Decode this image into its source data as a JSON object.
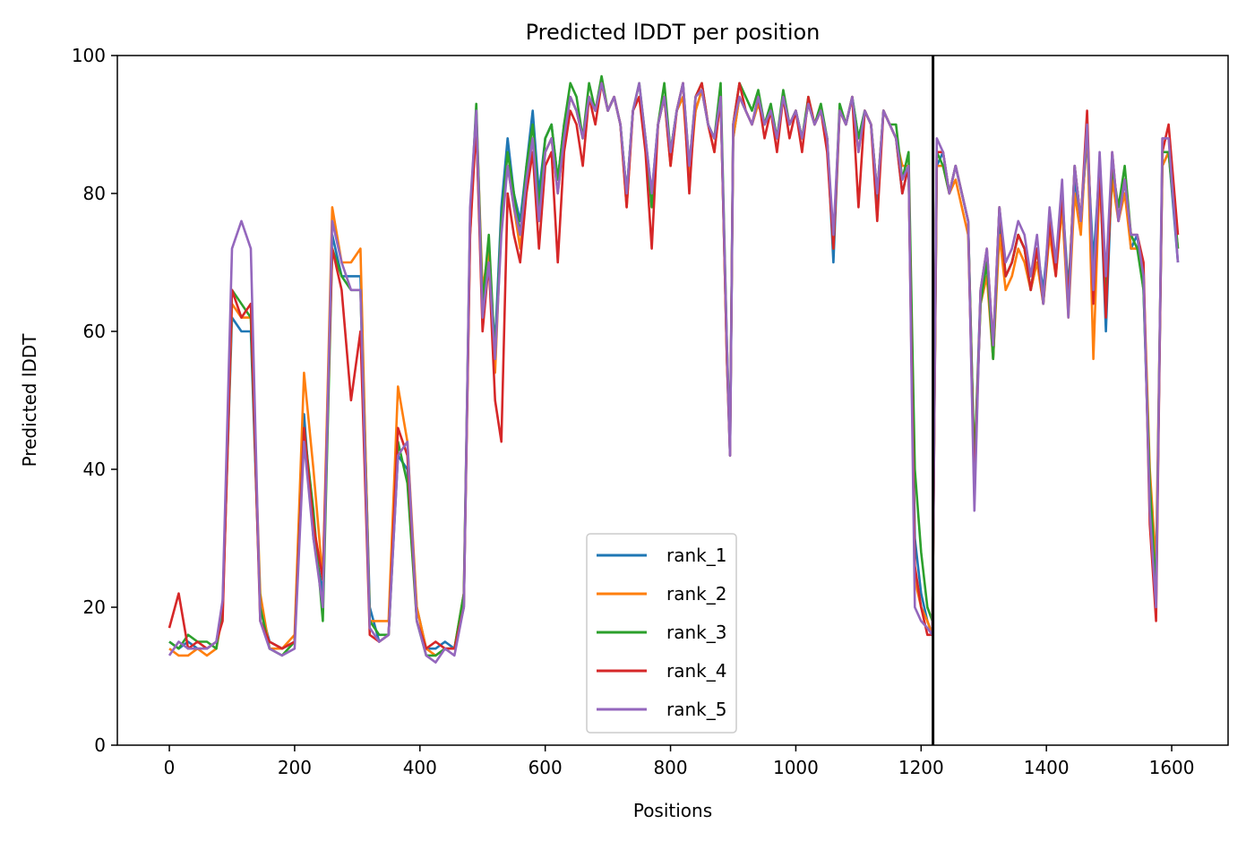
{
  "chart_data": {
    "type": "line",
    "title": "Predicted lDDT per position",
    "xlabel": "Positions",
    "ylabel": "Predicted lDDT",
    "xlim": [
      -83,
      1690
    ],
    "ylim": [
      0,
      100
    ],
    "xticks": [
      0,
      200,
      400,
      600,
      800,
      1000,
      1200,
      1400,
      1600
    ],
    "yticks": [
      0,
      20,
      40,
      60,
      80,
      100
    ],
    "grid": false,
    "legend_position": "lower center",
    "vertical_marker_x": 1219,
    "vertical_marker_color": "#000000",
    "x": [
      0,
      15,
      30,
      45,
      60,
      75,
      85,
      100,
      115,
      130,
      145,
      160,
      180,
      200,
      215,
      230,
      245,
      260,
      275,
      290,
      305,
      320,
      335,
      350,
      365,
      380,
      395,
      410,
      425,
      440,
      455,
      470,
      480,
      490,
      500,
      510,
      520,
      530,
      540,
      550,
      560,
      570,
      580,
      590,
      600,
      610,
      620,
      630,
      640,
      650,
      660,
      670,
      680,
      690,
      700,
      710,
      720,
      730,
      740,
      750,
      760,
      770,
      780,
      790,
      800,
      810,
      820,
      830,
      840,
      850,
      860,
      870,
      880,
      890,
      895,
      900,
      910,
      920,
      930,
      940,
      950,
      960,
      970,
      980,
      990,
      1000,
      1010,
      1020,
      1030,
      1040,
      1050,
      1060,
      1070,
      1080,
      1090,
      1100,
      1110,
      1120,
      1130,
      1140,
      1150,
      1160,
      1170,
      1180,
      1190,
      1200,
      1210,
      1218,
      1225,
      1235,
      1245,
      1255,
      1265,
      1275,
      1285,
      1295,
      1305,
      1315,
      1325,
      1335,
      1345,
      1355,
      1365,
      1375,
      1385,
      1395,
      1405,
      1415,
      1425,
      1435,
      1445,
      1455,
      1465,
      1475,
      1485,
      1495,
      1505,
      1515,
      1525,
      1535,
      1545,
      1555,
      1565,
      1575,
      1585,
      1595,
      1610
    ],
    "series": [
      {
        "name": "rank_1",
        "color": "#1f77b4",
        "values": [
          15,
          14,
          15,
          14,
          14,
          15,
          20,
          62,
          60,
          60,
          20,
          15,
          14,
          15,
          48,
          30,
          22,
          74,
          68,
          68,
          68,
          20,
          15,
          16,
          42,
          40,
          20,
          14,
          14,
          15,
          14,
          20,
          76,
          90,
          62,
          70,
          58,
          78,
          88,
          80,
          76,
          84,
          92,
          80,
          88,
          90,
          82,
          90,
          94,
          92,
          88,
          94,
          92,
          96,
          92,
          94,
          90,
          80,
          92,
          94,
          88,
          80,
          90,
          94,
          86,
          92,
          94,
          84,
          92,
          95,
          90,
          88,
          94,
          56,
          42,
          88,
          94,
          92,
          90,
          93,
          90,
          92,
          88,
          94,
          90,
          92,
          88,
          93,
          90,
          92,
          88,
          70,
          92,
          90,
          94,
          88,
          92,
          90,
          78,
          92,
          90,
          88,
          80,
          84,
          30,
          22,
          18,
          16,
          84,
          86,
          80,
          84,
          80,
          76,
          40,
          66,
          70,
          56,
          76,
          68,
          70,
          74,
          72,
          68,
          72,
          66,
          76,
          70,
          80,
          66,
          82,
          76,
          88,
          70,
          84,
          60,
          84,
          76,
          82,
          72,
          74,
          66,
          36,
          22,
          84,
          86,
          70
        ]
      },
      {
        "name": "rank_2",
        "color": "#ff7f0e",
        "values": [
          14,
          13,
          13,
          14,
          13,
          14,
          19,
          64,
          62,
          62,
          22,
          14,
          14,
          16,
          54,
          40,
          24,
          78,
          70,
          70,
          72,
          18,
          18,
          18,
          52,
          44,
          20,
          14,
          13,
          14,
          14,
          22,
          74,
          92,
          66,
          72,
          54,
          76,
          84,
          78,
          72,
          82,
          88,
          76,
          86,
          88,
          80,
          88,
          94,
          92,
          88,
          94,
          92,
          96,
          92,
          94,
          90,
          78,
          92,
          94,
          88,
          78,
          90,
          94,
          84,
          92,
          94,
          82,
          92,
          95,
          90,
          86,
          94,
          56,
          44,
          88,
          94,
          92,
          90,
          93,
          90,
          92,
          88,
          94,
          90,
          92,
          88,
          93,
          90,
          92,
          88,
          72,
          92,
          90,
          94,
          86,
          92,
          90,
          80,
          92,
          90,
          88,
          84,
          84,
          24,
          20,
          18,
          16,
          84,
          84,
          80,
          82,
          78,
          74,
          40,
          64,
          68,
          56,
          74,
          66,
          68,
          72,
          70,
          66,
          70,
          64,
          74,
          68,
          78,
          62,
          80,
          74,
          90,
          56,
          82,
          66,
          82,
          76,
          80,
          72,
          72,
          68,
          40,
          26,
          84,
          86,
          72
        ]
      },
      {
        "name": "rank_3",
        "color": "#2ca02c",
        "values": [
          15,
          14,
          16,
          15,
          15,
          14,
          20,
          66,
          64,
          62,
          20,
          14,
          13,
          15,
          46,
          34,
          18,
          72,
          68,
          66,
          66,
          18,
          16,
          16,
          44,
          38,
          18,
          13,
          13,
          14,
          14,
          22,
          76,
          93,
          64,
          74,
          56,
          76,
          86,
          80,
          74,
          84,
          90,
          78,
          88,
          90,
          82,
          90,
          96,
          94,
          88,
          96,
          92,
          97,
          92,
          94,
          90,
          80,
          92,
          96,
          88,
          78,
          90,
          96,
          86,
          92,
          96,
          84,
          94,
          96,
          90,
          88,
          96,
          58,
          44,
          90,
          96,
          94,
          92,
          95,
          90,
          93,
          88,
          95,
          90,
          92,
          88,
          94,
          90,
          93,
          88,
          72,
          93,
          90,
          94,
          88,
          92,
          90,
          80,
          92,
          90,
          90,
          82,
          86,
          40,
          28,
          20,
          18,
          86,
          84,
          80,
          84,
          80,
          76,
          40,
          64,
          70,
          56,
          78,
          68,
          70,
          74,
          72,
          66,
          72,
          64,
          76,
          70,
          80,
          64,
          84,
          76,
          90,
          66,
          84,
          64,
          84,
          78,
          84,
          74,
          72,
          66,
          38,
          22,
          86,
          86,
          72
        ]
      },
      {
        "name": "rank_4",
        "color": "#d62728",
        "values": [
          17,
          22,
          14,
          15,
          14,
          15,
          18,
          66,
          62,
          64,
          18,
          15,
          14,
          15,
          46,
          32,
          24,
          72,
          66,
          50,
          60,
          16,
          15,
          16,
          46,
          42,
          18,
          14,
          15,
          14,
          14,
          20,
          74,
          90,
          60,
          70,
          50,
          44,
          80,
          74,
          70,
          80,
          86,
          72,
          84,
          86,
          70,
          86,
          92,
          90,
          84,
          94,
          90,
          96,
          92,
          94,
          90,
          78,
          92,
          94,
          86,
          72,
          90,
          94,
          84,
          92,
          96,
          80,
          94,
          96,
          90,
          86,
          94,
          56,
          42,
          90,
          96,
          92,
          90,
          94,
          88,
          92,
          86,
          94,
          88,
          92,
          86,
          94,
          90,
          92,
          86,
          72,
          92,
          90,
          94,
          78,
          92,
          90,
          76,
          92,
          90,
          88,
          80,
          84,
          26,
          20,
          16,
          16,
          86,
          86,
          80,
          84,
          80,
          76,
          36,
          66,
          72,
          58,
          78,
          68,
          70,
          74,
          72,
          66,
          72,
          64,
          76,
          68,
          80,
          64,
          84,
          76,
          92,
          64,
          84,
          62,
          86,
          76,
          82,
          74,
          74,
          70,
          32,
          18,
          86,
          90,
          74
        ]
      },
      {
        "name": "rank_5",
        "color": "#9467bd",
        "values": [
          13,
          15,
          14,
          14,
          14,
          15,
          21,
          72,
          76,
          72,
          18,
          14,
          13,
          14,
          44,
          30,
          20,
          76,
          70,
          66,
          66,
          17,
          15,
          16,
          42,
          44,
          18,
          13,
          12,
          14,
          13,
          20,
          78,
          92,
          62,
          70,
          56,
          74,
          84,
          78,
          74,
          82,
          88,
          76,
          86,
          88,
          80,
          88,
          94,
          92,
          88,
          94,
          92,
          96,
          92,
          94,
          90,
          80,
          92,
          96,
          88,
          80,
          90,
          94,
          86,
          92,
          96,
          84,
          94,
          95,
          90,
          88,
          94,
          58,
          42,
          90,
          94,
          92,
          90,
          94,
          90,
          92,
          88,
          94,
          90,
          92,
          88,
          93,
          90,
          92,
          88,
          74,
          92,
          90,
          94,
          86,
          92,
          90,
          80,
          92,
          90,
          88,
          82,
          84,
          20,
          18,
          17,
          16,
          88,
          86,
          80,
          84,
          80,
          76,
          34,
          66,
          72,
          58,
          78,
          70,
          72,
          76,
          74,
          68,
          74,
          64,
          78,
          70,
          82,
          62,
          84,
          76,
          90,
          66,
          86,
          68,
          86,
          76,
          82,
          74,
          74,
          68,
          34,
          20,
          88,
          88,
          70
        ]
      }
    ]
  }
}
